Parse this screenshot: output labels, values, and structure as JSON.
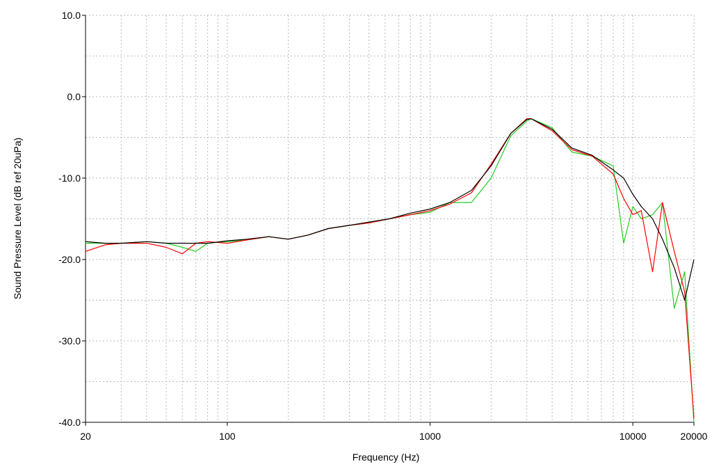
{
  "chart_data": {
    "type": "line",
    "xlabel": "Frequency (Hz)",
    "ylabel": "Sound Pressure Level (dB ref 20uPa)",
    "xscale": "log",
    "xlim": [
      20,
      20000
    ],
    "xticks": [
      20,
      100,
      1000,
      10000,
      20000
    ],
    "x_minor_ticks": [
      30,
      40,
      50,
      60,
      70,
      80,
      90,
      200,
      300,
      400,
      500,
      600,
      700,
      800,
      900,
      2000,
      3000,
      4000,
      5000,
      6000,
      7000,
      8000,
      9000
    ],
    "ylim": [
      -40,
      10
    ],
    "yticks": [
      {
        "value": -40,
        "label": "-40.0"
      },
      {
        "value": -30,
        "label": "-30.0"
      },
      {
        "value": -20,
        "label": "-20.0"
      },
      {
        "value": -10,
        "label": "-10.0"
      },
      {
        "value": 0,
        "label": "0.0"
      },
      {
        "value": 10,
        "label": "10.0"
      }
    ],
    "y_minor_ticks": [
      -35,
      -25,
      -15,
      -5,
      5
    ],
    "grid": true,
    "x": [
      20,
      25,
      30,
      40,
      50,
      60,
      70,
      80,
      100,
      125,
      160,
      200,
      250,
      315,
      400,
      500,
      630,
      800,
      1000,
      1250,
      1600,
      2000,
      2500,
      3000,
      3150,
      4000,
      5000,
      6300,
      8000,
      9000,
      10000,
      11000,
      12500,
      14000,
      16000,
      18000,
      20000
    ],
    "series": [
      {
        "color": "#000000",
        "values": [
          -17.8,
          -18,
          -18,
          -17.8,
          -18,
          -18,
          -18,
          -18,
          -17.7,
          -17.5,
          -17.2,
          -17.5,
          -17,
          -16.2,
          -15.8,
          -15.4,
          -15,
          -14.3,
          -13.8,
          -13,
          -11.5,
          -8.5,
          -4.5,
          -2.8,
          -2.7,
          -4,
          -6.3,
          -7.2,
          -9,
          -10,
          -12,
          -13.5,
          -15,
          -17.5,
          -21,
          -25,
          -20
        ]
      },
      {
        "color": "#ff0000",
        "values": [
          -19,
          -18.2,
          -18,
          -18,
          -18.5,
          -19.3,
          -18,
          -17.8,
          -18,
          -17.6,
          -17.2,
          -17.5,
          -17,
          -16.2,
          -15.8,
          -15.5,
          -15,
          -14.5,
          -14,
          -13.2,
          -11.8,
          -8.3,
          -4.5,
          -2.7,
          -2.7,
          -4.2,
          -6.5,
          -7.3,
          -9.5,
          -12.5,
          -14.5,
          -14,
          -21.5,
          -13,
          -19,
          -24,
          -39.5
        ]
      },
      {
        "color": "#22cc22",
        "values": [
          -18,
          -18,
          -18,
          -17.8,
          -18,
          -18.5,
          -19,
          -18,
          -17.8,
          -17.6,
          -17.2,
          -17.5,
          -17,
          -16.2,
          -15.8,
          -15.5,
          -15,
          -14.5,
          -14.2,
          -13,
          -13,
          -10,
          -4.8,
          -3,
          -2.7,
          -3.8,
          -6.8,
          -7.3,
          -8.5,
          -18,
          -13.5,
          -15,
          -14.5,
          -13,
          -26,
          -21.5,
          -40
        ]
      }
    ]
  }
}
